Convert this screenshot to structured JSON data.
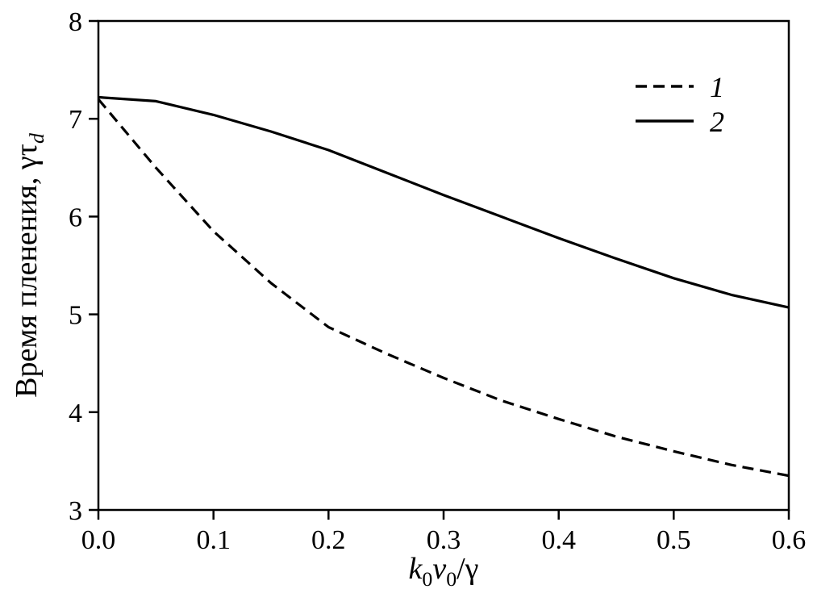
{
  "figure": {
    "background": "#ffffff",
    "line_color": "#000000"
  },
  "axes": {
    "ylabel_main": "Время пленения, γτ",
    "ylabel_sub": "d",
    "xlabel_k": "k",
    "xlabel_k_sub": "0",
    "xlabel_v": "v",
    "xlabel_v_sub": "0",
    "xlabel_rest": "/γ"
  },
  "chart_data": {
    "type": "line",
    "title": "",
    "xlabel": "k0v0/γ",
    "ylabel": "Время пленения, γτd",
    "xlim": [
      0,
      0.6
    ],
    "ylim": [
      3,
      8
    ],
    "grid": false,
    "x_tick_values": [
      0,
      0.1,
      0.2,
      0.3,
      0.4,
      0.5,
      0.6
    ],
    "x_tick_labels": [
      "0.0",
      "0.1",
      "0.2",
      "0.3",
      "0.4",
      "0.5",
      "0.6"
    ],
    "y_tick_values": [
      3,
      4,
      5,
      6,
      7,
      8
    ],
    "y_tick_labels": [
      "3",
      "4",
      "5",
      "6",
      "7",
      "8"
    ],
    "x": [
      0,
      0.05,
      0.1,
      0.15,
      0.2,
      0.25,
      0.3,
      0.35,
      0.4,
      0.45,
      0.5,
      0.55,
      0.6
    ],
    "series": [
      {
        "name": "1",
        "style": "dashed",
        "dash": "14 8",
        "color": "#000000",
        "values": [
          7.2,
          6.5,
          5.85,
          5.32,
          4.87,
          4.6,
          4.35,
          4.12,
          3.93,
          3.75,
          3.6,
          3.46,
          3.35
        ]
      },
      {
        "name": "2",
        "style": "solid",
        "dash": "",
        "color": "#000000",
        "values": [
          7.22,
          7.18,
          7.04,
          6.87,
          6.68,
          6.45,
          6.22,
          6.0,
          5.78,
          5.57,
          5.37,
          5.2,
          5.07
        ]
      }
    ],
    "legend": {
      "position": "upper-right",
      "entries": [
        "1",
        "2"
      ]
    }
  }
}
